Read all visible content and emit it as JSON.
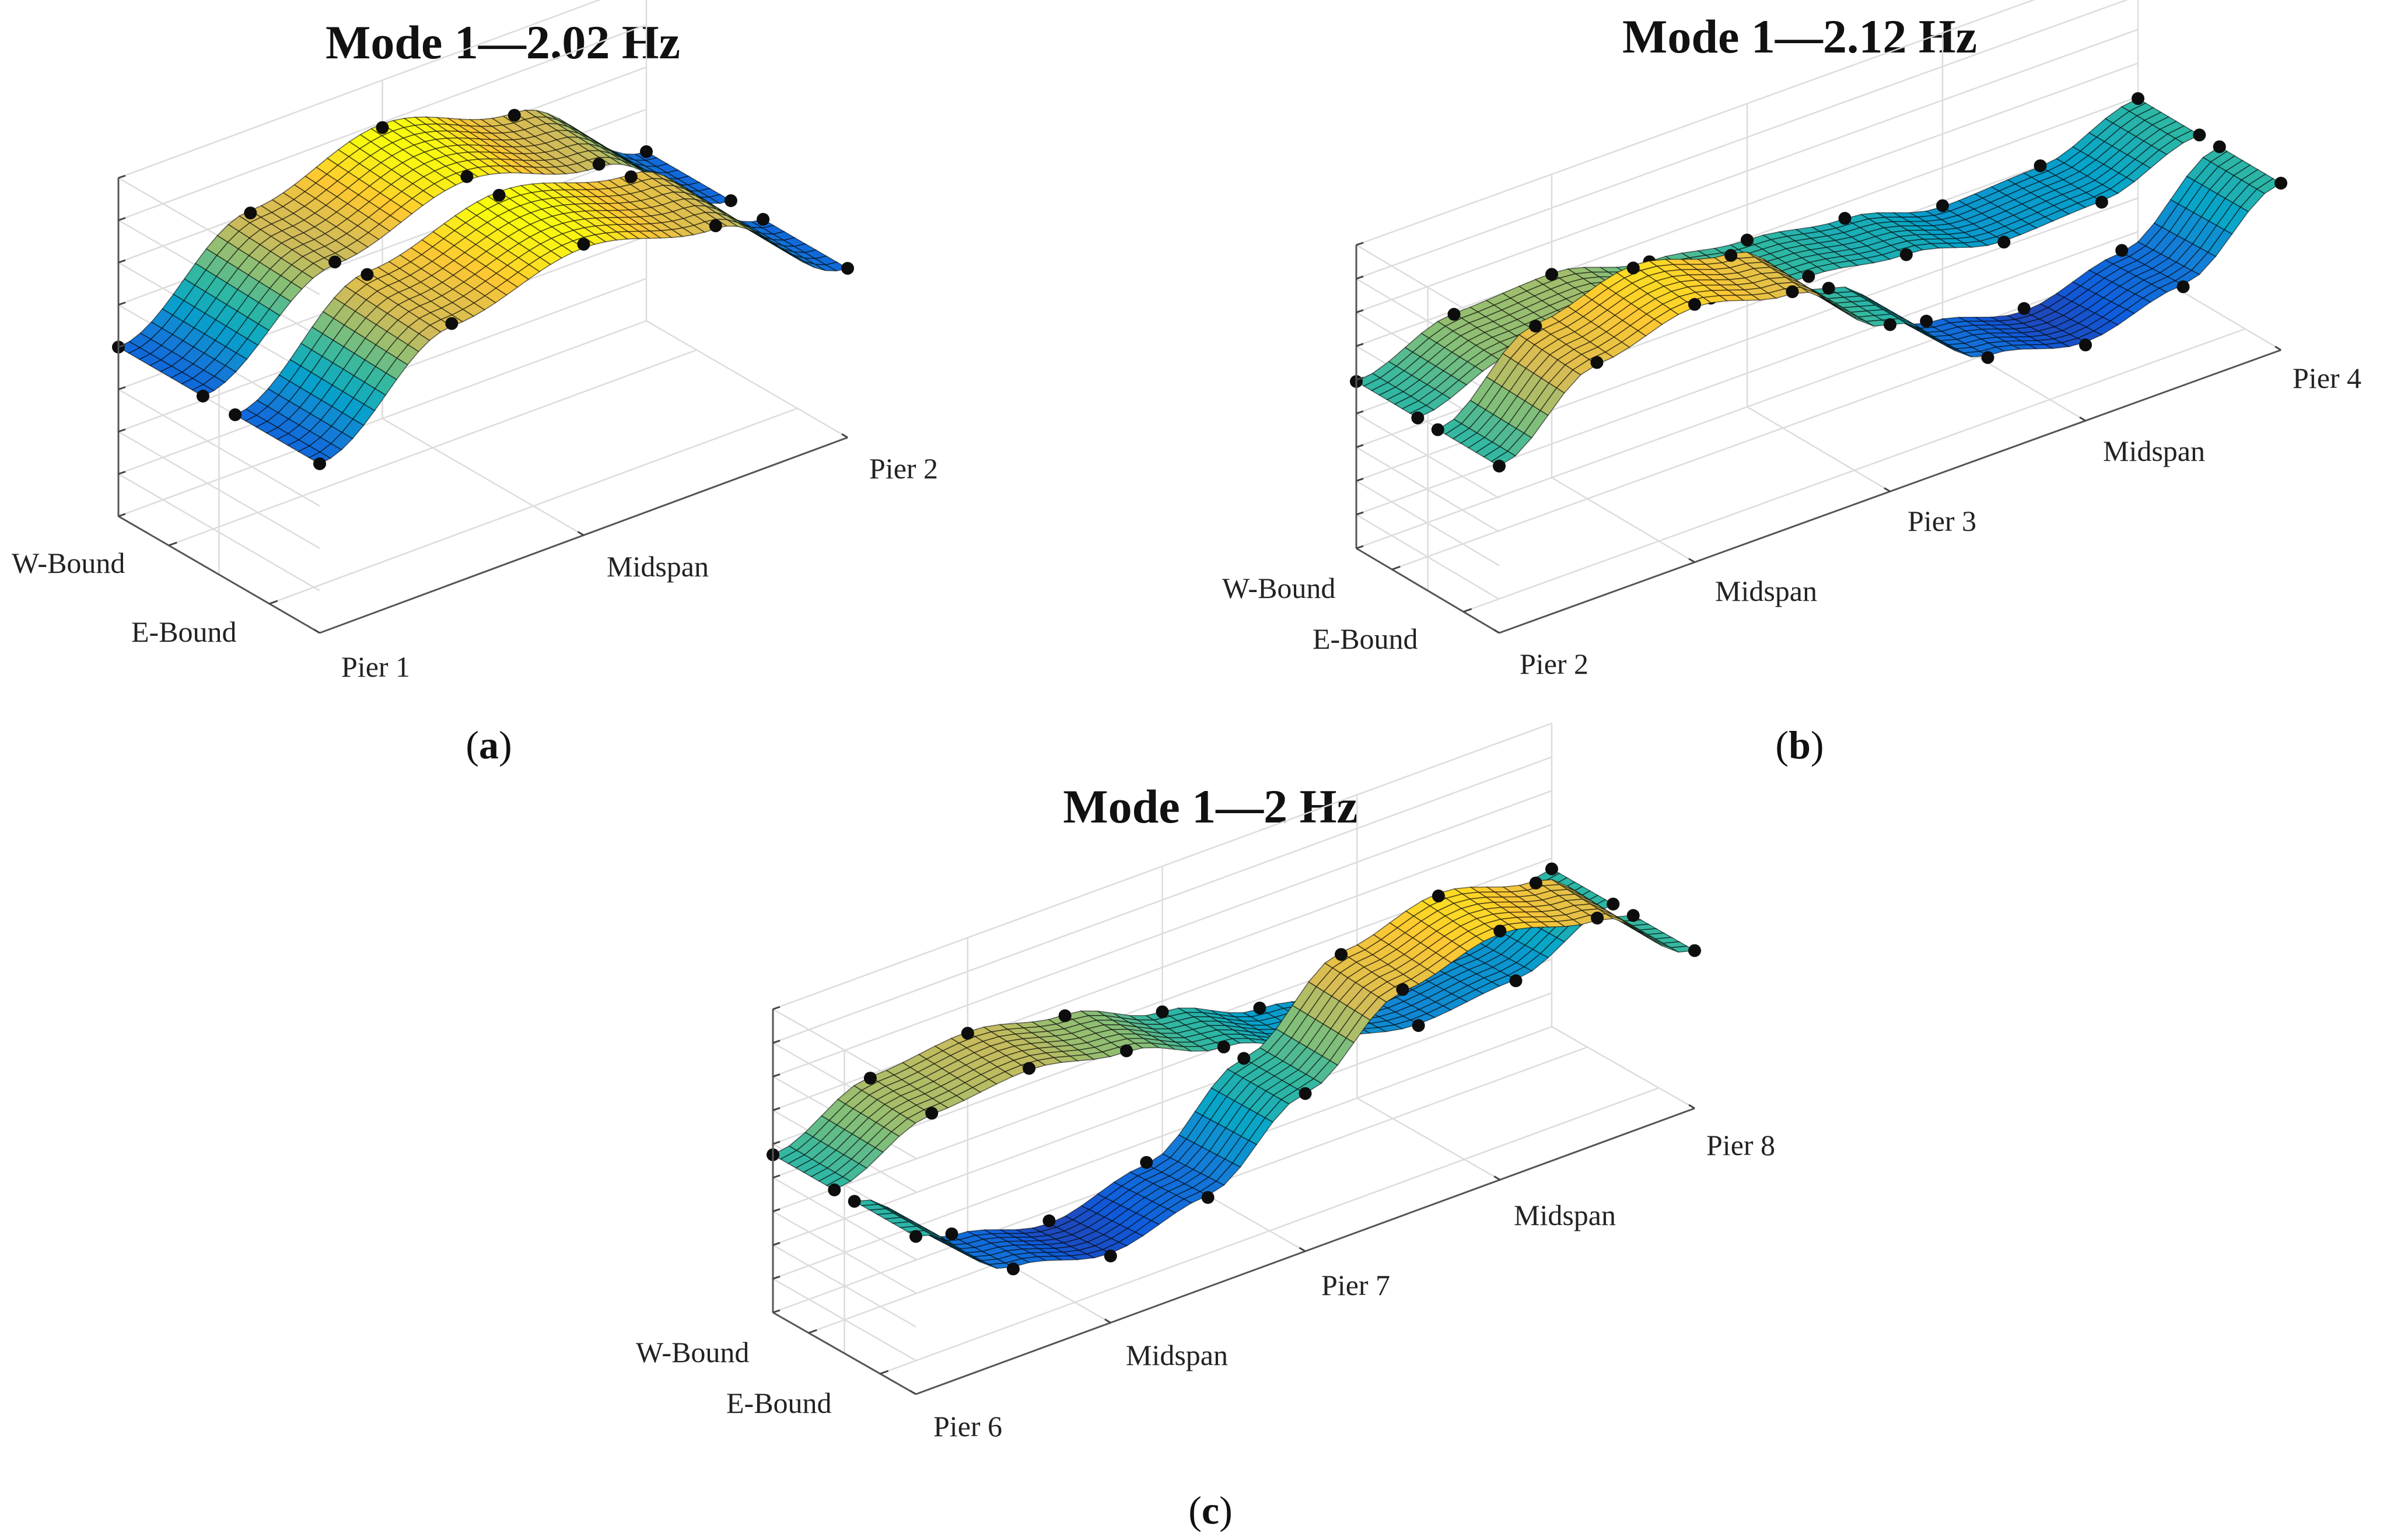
{
  "chart_data": [
    {
      "type": "surface",
      "panel": "a",
      "title": "Mode 1—2.02 Hz",
      "x_ticks": [
        "Pier 1",
        "Midspan",
        "Pier 2"
      ],
      "y_ticks": [
        "W-Bound",
        "E-Bound"
      ],
      "series": [
        {
          "name": "W-Bound",
          "x": [
            0,
            0.25,
            0.5,
            0.75,
            1
          ],
          "z": [
            0.0,
            0.7,
            1.0,
            0.7,
            0.0
          ]
        },
        {
          "name": "E-Bound",
          "x": [
            0,
            0.25,
            0.5,
            0.75,
            1
          ],
          "z": [
            0.0,
            0.75,
            1.0,
            0.75,
            0.0
          ]
        }
      ],
      "zlim": [
        -0.2,
        1.0
      ],
      "grid": true
    },
    {
      "type": "surface",
      "panel": "b",
      "title": "Mode 1—2.12 Hz",
      "x_ticks": [
        "Pier 2",
        "Midspan",
        "Pier 3",
        "Midspan",
        "Pier 4"
      ],
      "y_ticks": [
        "W-Bound",
        "E-Bound"
      ],
      "series": [
        {
          "name": "W-Bound",
          "x": [
            0,
            0.125,
            0.25,
            0.375,
            0.5,
            0.625,
            0.75,
            0.875,
            1
          ],
          "z": [
            0.0,
            0.35,
            0.4,
            0.15,
            0.0,
            -0.15,
            -0.4,
            -0.35,
            0.0
          ]
        },
        {
          "name": "E-Bound",
          "x": [
            0,
            0.125,
            0.25,
            0.375,
            0.5,
            0.625,
            0.75,
            0.875,
            1
          ],
          "z": [
            0.0,
            0.75,
            1.0,
            0.75,
            0.0,
            -0.75,
            -1.0,
            -0.75,
            0.0
          ]
        }
      ],
      "zlim": [
        -1.2,
        1.2
      ],
      "grid": true
    },
    {
      "type": "surface",
      "panel": "c",
      "title": "Mode 1—2 Hz",
      "x_ticks": [
        "Pier 6",
        "Midspan",
        "Pier 7",
        "Midspan",
        "Pier 8"
      ],
      "y_ticks": [
        "W-Bound",
        "E-Bound"
      ],
      "series": [
        {
          "name": "W-Bound",
          "x": [
            0,
            0.125,
            0.25,
            0.375,
            0.5,
            0.625,
            0.75,
            0.875,
            1
          ],
          "z": [
            0.0,
            0.45,
            0.55,
            0.35,
            0.0,
            -0.35,
            -0.55,
            -0.45,
            0.0
          ]
        },
        {
          "name": "E-Bound",
          "x": [
            0,
            0.125,
            0.25,
            0.375,
            0.5,
            0.625,
            0.75,
            0.875,
            1
          ],
          "z": [
            0.0,
            -0.75,
            -1.0,
            -0.75,
            0.0,
            0.75,
            1.0,
            0.75,
            0.0
          ]
        }
      ],
      "zlim": [
        -1.2,
        1.2
      ],
      "grid": true
    }
  ],
  "panel_labels": [
    {
      "open": "(",
      "letter": "a",
      "close": ")"
    },
    {
      "open": "(",
      "letter": "b",
      "close": ")"
    },
    {
      "open": "(",
      "letter": "c",
      "close": ")"
    }
  ],
  "colors": {
    "colormap": [
      "#352a87",
      "#0f5cdd",
      "#1481d6",
      "#06a4ca",
      "#2eb7a4",
      "#87bf77",
      "#d1bb59",
      "#fec832",
      "#f9fb0e"
    ],
    "mesh_line": "#000000",
    "sensor_dot": "#0d0d0d"
  }
}
